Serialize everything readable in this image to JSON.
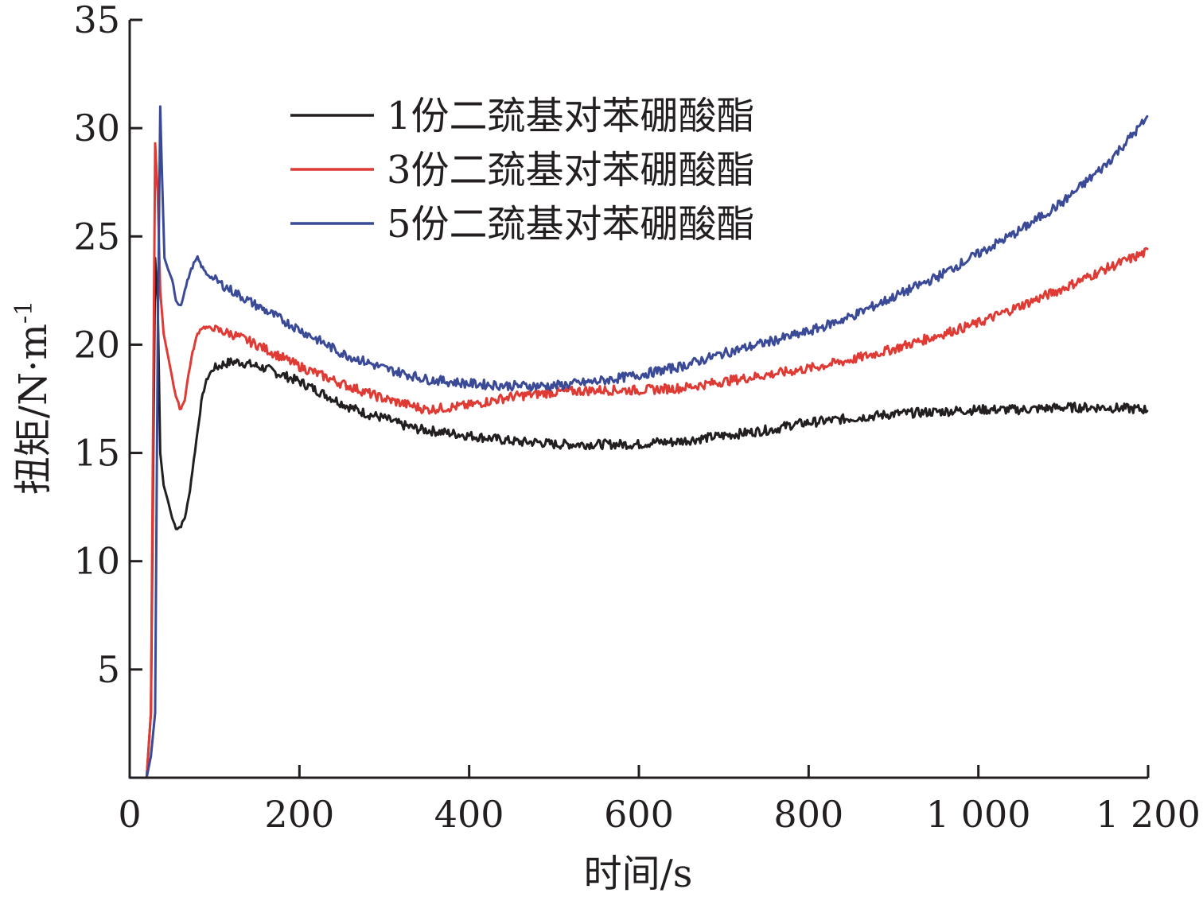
{
  "chart_data": {
    "type": "line",
    "xlabel": "时间/s",
    "ylabel": "扭矩/N·m",
    "ylabel_sup": "-1",
    "xlim": [
      0,
      1200
    ],
    "ylim": [
      0,
      35
    ],
    "xticks": [
      0,
      200,
      400,
      600,
      800,
      1000,
      1200
    ],
    "xtick_labels": [
      "0",
      "200",
      "400",
      "600",
      "800",
      "1 000",
      "1 200"
    ],
    "yticks": [
      5,
      10,
      15,
      20,
      25,
      30,
      35
    ],
    "ytick_labels": [
      "5",
      "10",
      "15",
      "20",
      "25",
      "30",
      "35"
    ],
    "grid": false,
    "legend_position": "top-center",
    "series": [
      {
        "name": "1份二巯基对苯硼酸酯",
        "color": "#231f20",
        "x": [
          0,
          20,
          25,
          30,
          33,
          36,
          40,
          45,
          50,
          55,
          60,
          65,
          70,
          75,
          80,
          85,
          90,
          95,
          100,
          110,
          120,
          130,
          140,
          150,
          160,
          180,
          200,
          220,
          240,
          260,
          280,
          300,
          320,
          340,
          360,
          380,
          400,
          420,
          440,
          460,
          480,
          500,
          520,
          540,
          560,
          580,
          600,
          620,
          640,
          660,
          680,
          700,
          720,
          740,
          760,
          780,
          800,
          850,
          900,
          950,
          1000,
          1050,
          1100,
          1150,
          1200
        ],
        "y": [
          0,
          0,
          3,
          24,
          22,
          15,
          13.5,
          12.8,
          12,
          11.5,
          11.6,
          12,
          13,
          14.5,
          16,
          17.5,
          18.3,
          18.7,
          18.9,
          19.1,
          19.2,
          19.2,
          19.1,
          19,
          18.9,
          18.6,
          18.3,
          17.9,
          17.5,
          17.1,
          16.8,
          16.6,
          16.3,
          16.1,
          16,
          15.9,
          15.8,
          15.7,
          15.6,
          15.5,
          15.5,
          15.4,
          15.4,
          15.4,
          15.4,
          15.4,
          15.4,
          15.5,
          15.5,
          15.6,
          15.7,
          15.8,
          15.9,
          16,
          16.1,
          16.3,
          16.4,
          16.6,
          16.8,
          16.9,
          17,
          17,
          17.1,
          17.1,
          17
        ]
      },
      {
        "name": "3份二巯基对苯硼酸酯",
        "color": "#e03a35",
        "x": [
          0,
          20,
          25,
          30,
          33,
          36,
          40,
          45,
          50,
          55,
          60,
          65,
          70,
          75,
          80,
          85,
          90,
          100,
          120,
          150,
          200,
          250,
          300,
          350,
          400,
          450,
          500,
          550,
          600,
          650,
          700,
          750,
          800,
          850,
          900,
          950,
          1000,
          1050,
          1100,
          1150,
          1200
        ],
        "y": [
          0,
          0,
          3,
          29.3,
          27,
          22.5,
          20.5,
          19.5,
          18.5,
          17.5,
          17,
          17.5,
          18.8,
          19.8,
          20.5,
          20.8,
          20.8,
          20.7,
          20.5,
          20,
          19,
          18.2,
          17.5,
          17,
          17.2,
          17.6,
          17.8,
          17.9,
          17.9,
          18,
          18.3,
          18.6,
          18.9,
          19.3,
          19.8,
          20.4,
          21,
          21.8,
          22.6,
          23.5,
          24.3
        ]
      },
      {
        "name": "5份二巯基对苯硼酸酯",
        "color": "#3a4a96",
        "x": [
          0,
          20,
          25,
          30,
          33,
          36,
          38,
          41,
          45,
          50,
          55,
          60,
          65,
          70,
          75,
          80,
          85,
          90,
          100,
          120,
          150,
          200,
          250,
          300,
          350,
          400,
          450,
          500,
          550,
          600,
          650,
          700,
          750,
          800,
          850,
          900,
          950,
          1000,
          1050,
          1100,
          1150,
          1200
        ],
        "y": [
          0,
          0,
          1,
          3,
          20,
          31,
          28,
          24,
          23.5,
          23,
          22,
          21.8,
          22.5,
          23.2,
          23.7,
          24,
          23.6,
          23.3,
          23,
          22.5,
          21.8,
          20.7,
          19.6,
          18.9,
          18.4,
          18.2,
          18.1,
          18.1,
          18.3,
          18.6,
          19,
          19.6,
          20.1,
          20.6,
          21.3,
          22.2,
          23.1,
          24.2,
          25.3,
          26.6,
          28.3,
          30.5
        ]
      }
    ]
  }
}
